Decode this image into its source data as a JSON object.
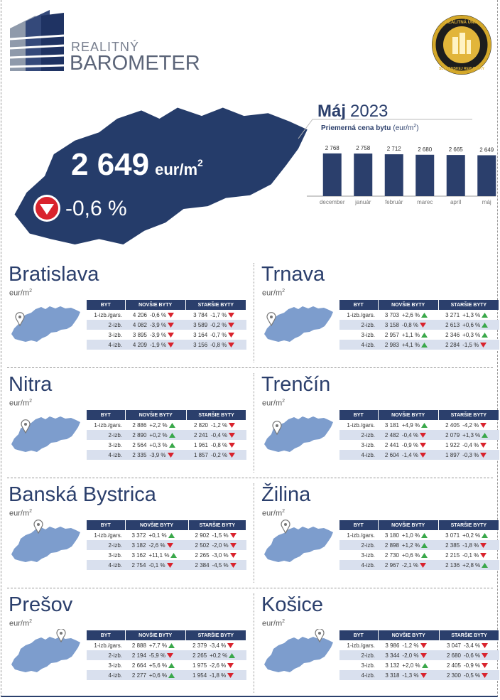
{
  "header": {
    "brand_line1": "REALITNÝ",
    "brand_line2": "BAROMETER",
    "seal_top": "REALITNÁ ÚNIA",
    "seal_bottom": "SLOVENSKEJ REPUBLIKY"
  },
  "hero": {
    "value": "2 649",
    "unit": "eur/m",
    "unit_sup": "2",
    "change": "-0,6 %"
  },
  "chart_data": {
    "type": "bar",
    "title_month": "Máj",
    "title_year": "2023",
    "subtitle": "Priemerná cena bytu",
    "subtitle_unit": "(eur/m",
    "subtitle_sup": "2",
    "subtitle_end": ")",
    "categories": [
      "december",
      "január",
      "február",
      "marec",
      "apríl",
      "máj"
    ],
    "values": [
      2768,
      2758,
      2712,
      2680,
      2665,
      2649
    ],
    "value_labels": [
      "2 768",
      "2 758",
      "2 712",
      "2 680",
      "2 665",
      "2 649"
    ],
    "color": "#2b3f6c",
    "ylim": [
      0,
      2900
    ]
  },
  "unit": "eur/m",
  "unit_sup": "2",
  "table_header": [
    "BYT",
    "NOVŠIE BYTY",
    "STARŠIE BYTY"
  ],
  "row_labels": [
    "1-izb./gars.",
    "2-izb.",
    "3-izb.",
    "4-izb."
  ],
  "regions": [
    {
      "name": "Bratislava",
      "rows": [
        [
          "4 206",
          "-0,6 %",
          "3 784",
          "-1,7 %"
        ],
        [
          "4 082",
          "-3,9 %",
          "3 589",
          "-0,2 %"
        ],
        [
          "3 895",
          "-3,9 %",
          "3 164",
          "-0,7 %"
        ],
        [
          "4 209",
          "-1,9 %",
          "3 156",
          "-0,8 %"
        ]
      ]
    },
    {
      "name": "Trnava",
      "rows": [
        [
          "3 703",
          "+2,6 %",
          "3 271",
          "+1,3 %"
        ],
        [
          "3 158",
          "-0,8 %",
          "2 613",
          "+0,6 %"
        ],
        [
          "2 957",
          "+1,1 %",
          "2 346",
          "+0,3 %"
        ],
        [
          "2 983",
          "+4,1 %",
          "2 284",
          "-1,5 %"
        ]
      ]
    },
    {
      "name": "Nitra",
      "rows": [
        [
          "2 886",
          "+2,2 %",
          "2 820",
          "-1,2 %"
        ],
        [
          "2 890",
          "+0,2 %",
          "2 241",
          "-0,4 %"
        ],
        [
          "2 564",
          "+0,3 %",
          "1 961",
          "-0,8 %"
        ],
        [
          "2 335",
          "-3,9 %",
          "1 857",
          "-0,2 %"
        ]
      ]
    },
    {
      "name": "Trenčín",
      "rows": [
        [
          "3 181",
          "+4,9 %",
          "2 405",
          "-4,2 %"
        ],
        [
          "2 482",
          "-0,4 %",
          "2 079",
          "+1,3 %"
        ],
        [
          "2 441",
          "-0,9 %",
          "1 922",
          "-0,4 %"
        ],
        [
          "2 604",
          "-1,4 %",
          "1 897",
          "-0,3 %"
        ]
      ]
    },
    {
      "name": "Banská Bystrica",
      "rows": [
        [
          "3 372",
          "+0,1 %",
          "2 902",
          "-1,5 %"
        ],
        [
          "3 182",
          "-2,6 %",
          "2 502",
          "-2,0 %"
        ],
        [
          "3 162",
          "+11,1 %",
          "2 265",
          "-3,0 %"
        ],
        [
          "2 754",
          "-0,1 %",
          "2 384",
          "-4,5 %"
        ]
      ]
    },
    {
      "name": "Žilina",
      "rows": [
        [
          "3 180",
          "+1,0 %",
          "3 071",
          "+0,2 %"
        ],
        [
          "2 898",
          "+1,2 %",
          "2 385",
          "-1,8 %"
        ],
        [
          "2 730",
          "+0,6 %",
          "2 215",
          "-0,1 %"
        ],
        [
          "2 967",
          "-2,1 %",
          "2 136",
          "+2,8 %"
        ]
      ]
    },
    {
      "name": "Prešov",
      "rows": [
        [
          "2 888",
          "+7,7 %",
          "2 379",
          "-3,4 %"
        ],
        [
          "2 194",
          "-5,9 %",
          "2 265",
          "+0,2 %"
        ],
        [
          "2 664",
          "+5,6 %",
          "1 975",
          "-2,6 %"
        ],
        [
          "2 277",
          "+0,6 %",
          "1 954",
          "-1,8 %"
        ]
      ]
    },
    {
      "name": "Košice",
      "rows": [
        [
          "3 986",
          "-1,2 %",
          "3 047",
          "-3,4 %"
        ],
        [
          "3 344",
          "-2,0 %",
          "2 680",
          "-0,6 %"
        ],
        [
          "3 132",
          "+2,0 %",
          "2 405",
          "-0,9 %"
        ],
        [
          "3 318",
          "-1,3 %",
          "2 300",
          "-0,5 %"
        ]
      ]
    }
  ]
}
